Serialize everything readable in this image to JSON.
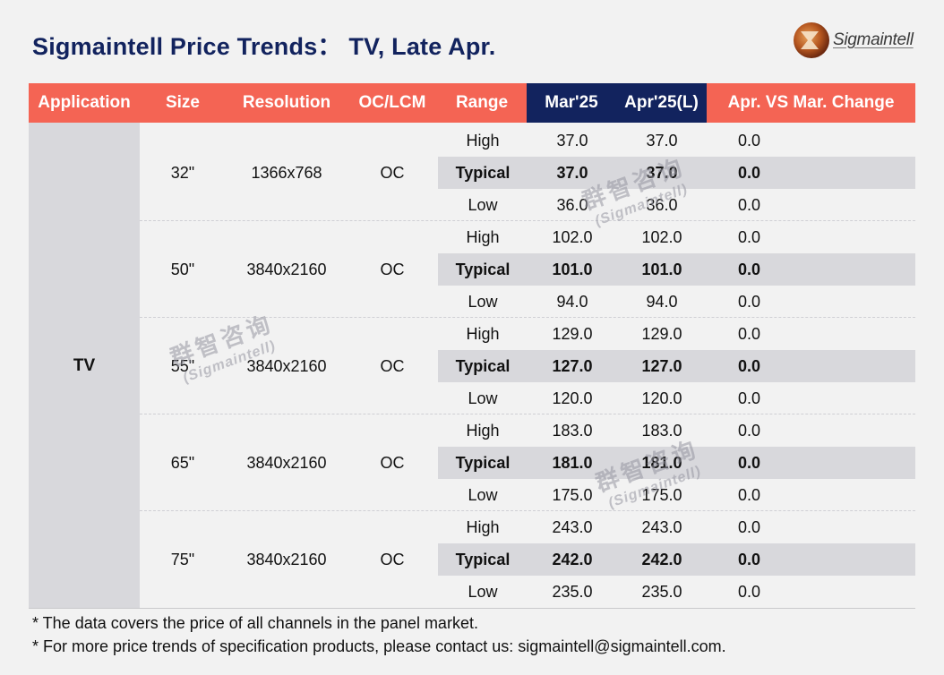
{
  "title": "Sigmaintell Price Trends： TV, Late Apr.",
  "logo": {
    "text": "Sigmaintell"
  },
  "headers": {
    "application": "Application",
    "size": "Size",
    "resolution": "Resolution",
    "oclcm": "OC/LCM",
    "range": "Range",
    "mar": "Mar'25",
    "apr": "Apr'25(L)",
    "change": "Apr. VS Mar. Change"
  },
  "application": "TV",
  "groups": [
    {
      "size": "32\"",
      "resolution": "1366x768",
      "oclcm": "OC",
      "rows": [
        {
          "range": "High",
          "mar": "37.0",
          "apr": "37.0",
          "change": "0.0"
        },
        {
          "range": "Typical",
          "mar": "37.0",
          "apr": "37.0",
          "change": "0.0"
        },
        {
          "range": "Low",
          "mar": "36.0",
          "apr": "36.0",
          "change": "0.0"
        }
      ]
    },
    {
      "size": "50\"",
      "resolution": "3840x2160",
      "oclcm": "OC",
      "rows": [
        {
          "range": "High",
          "mar": "102.0",
          "apr": "102.0",
          "change": "0.0"
        },
        {
          "range": "Typical",
          "mar": "101.0",
          "apr": "101.0",
          "change": "0.0"
        },
        {
          "range": "Low",
          "mar": "94.0",
          "apr": "94.0",
          "change": "0.0"
        }
      ]
    },
    {
      "size": "55\"",
      "resolution": "3840x2160",
      "oclcm": "OC",
      "rows": [
        {
          "range": "High",
          "mar": "129.0",
          "apr": "129.0",
          "change": "0.0"
        },
        {
          "range": "Typical",
          "mar": "127.0",
          "apr": "127.0",
          "change": "0.0"
        },
        {
          "range": "Low",
          "mar": "120.0",
          "apr": "120.0",
          "change": "0.0"
        }
      ]
    },
    {
      "size": "65\"",
      "resolution": "3840x2160",
      "oclcm": "OC",
      "rows": [
        {
          "range": "High",
          "mar": "183.0",
          "apr": "183.0",
          "change": "0.0"
        },
        {
          "range": "Typical",
          "mar": "181.0",
          "apr": "181.0",
          "change": "0.0"
        },
        {
          "range": "Low",
          "mar": "175.0",
          "apr": "175.0",
          "change": "0.0"
        }
      ]
    },
    {
      "size": "75\"",
      "resolution": "3840x2160",
      "oclcm": "OC",
      "rows": [
        {
          "range": "High",
          "mar": "243.0",
          "apr": "243.0",
          "change": "0.0"
        },
        {
          "range": "Typical",
          "mar": "242.0",
          "apr": "242.0",
          "change": "0.0"
        },
        {
          "range": "Low",
          "mar": "235.0",
          "apr": "235.0",
          "change": "0.0"
        }
      ]
    }
  ],
  "notes": [
    "* The data covers the price of all channels in the panel market.",
    "* For more price trends of specification products, please contact us: sigmaintell@sigmaintell.com."
  ],
  "watermark": {
    "cn": "群智咨询",
    "en": "(Sigmaintell)"
  },
  "colors": {
    "header": "#f46454",
    "header_dark": "#12235e",
    "title": "#12235e",
    "band": "#d8d8dc"
  }
}
